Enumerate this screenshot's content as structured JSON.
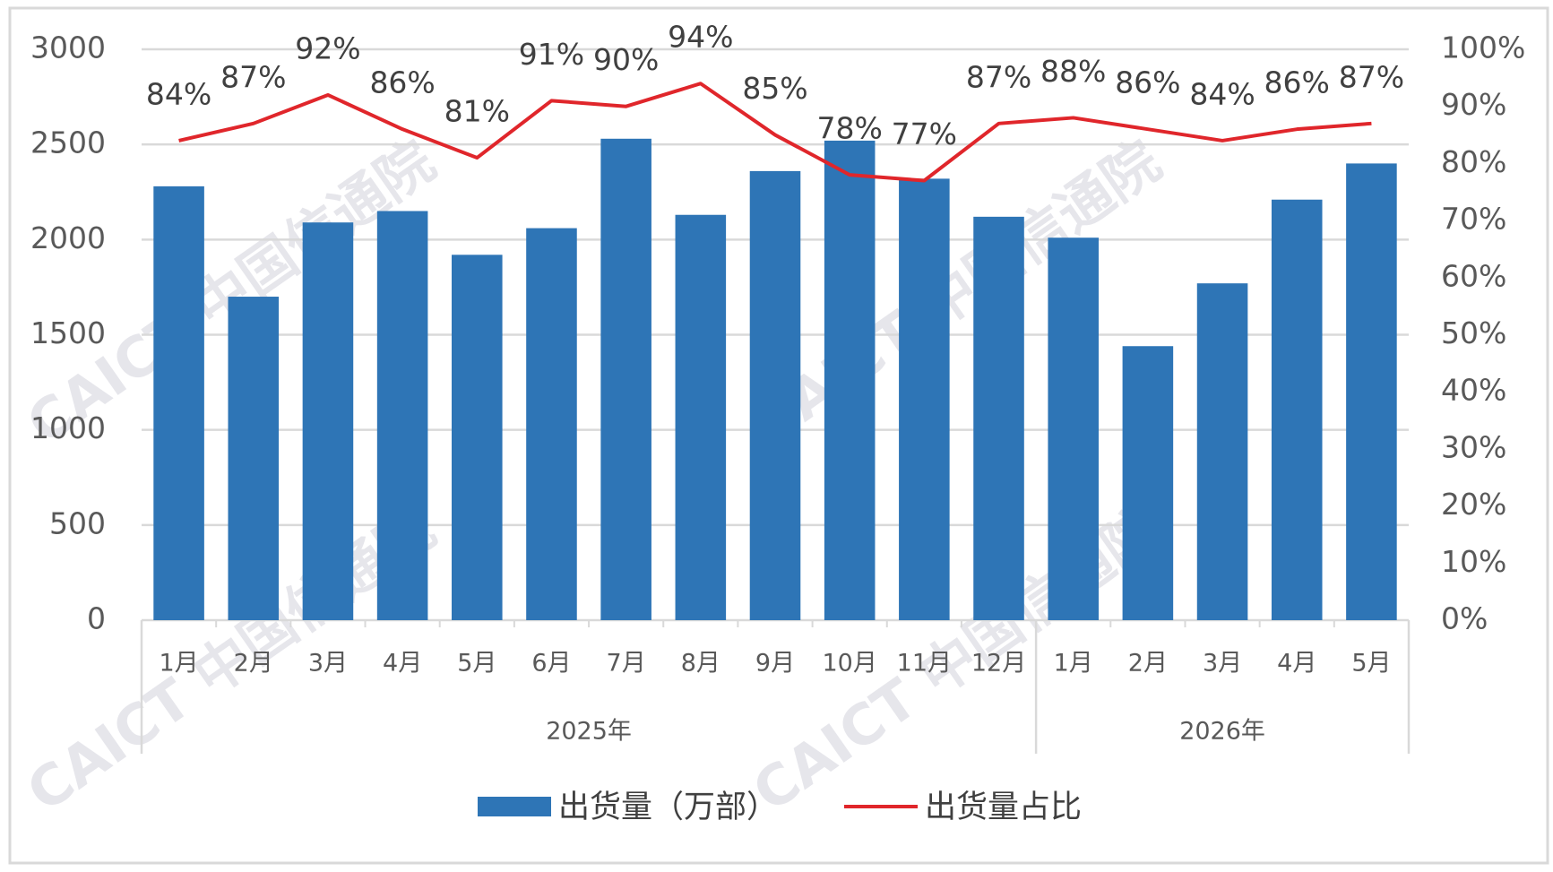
{
  "chart_data": {
    "type": "bar",
    "groups": [
      {
        "name": "2025年",
        "categories": [
          "1月",
          "2月",
          "3月",
          "4月",
          "5月",
          "6月",
          "7月",
          "8月",
          "9月",
          "10月",
          "11月",
          "12月"
        ]
      },
      {
        "name": "2026年",
        "categories": [
          "1月",
          "2月",
          "3月",
          "4月",
          "5月"
        ]
      }
    ],
    "series": [
      {
        "name": "出货量（万部）",
        "type": "bar",
        "color": "#2e75b6",
        "values": [
          2280,
          1700,
          2090,
          2150,
          1920,
          2060,
          2530,
          2130,
          2360,
          2520,
          2320,
          2120,
          2010,
          1440,
          1770,
          2210,
          2400
        ]
      },
      {
        "name": "出货量占比",
        "type": "line",
        "axis": "y2",
        "color": "#e0262b",
        "values": [
          84,
          87,
          92,
          86,
          81,
          91,
          90,
          94,
          85,
          78,
          77,
          87,
          88,
          86,
          84,
          86,
          87
        ],
        "value_labels": [
          "84%",
          "87%",
          "92%",
          "86%",
          "81%",
          "91%",
          "90%",
          "94%",
          "85%",
          "78%",
          "77%",
          "87%",
          "88%",
          "86%",
          "84%",
          "86%",
          "87%"
        ]
      }
    ],
    "ylim": [
      0,
      3000
    ],
    "yticks": [
      0,
      500,
      1000,
      1500,
      2000,
      2500,
      3000
    ],
    "y2lim": [
      0,
      100
    ],
    "y2ticks": [
      {
        "value": 0,
        "label": "0%"
      },
      {
        "value": 10,
        "label": "10%"
      },
      {
        "value": 20,
        "label": "20%"
      },
      {
        "value": 30,
        "label": "30%"
      },
      {
        "value": 40,
        "label": "40%"
      },
      {
        "value": 50,
        "label": "50%"
      },
      {
        "value": 60,
        "label": "60%"
      },
      {
        "value": 70,
        "label": "70%"
      },
      {
        "value": 80,
        "label": "80%"
      },
      {
        "value": 90,
        "label": "90%"
      },
      {
        "value": 100,
        "label": "100%"
      }
    ],
    "grid": true,
    "legend": "bottom",
    "watermark": "CAICT 中国信通院"
  }
}
